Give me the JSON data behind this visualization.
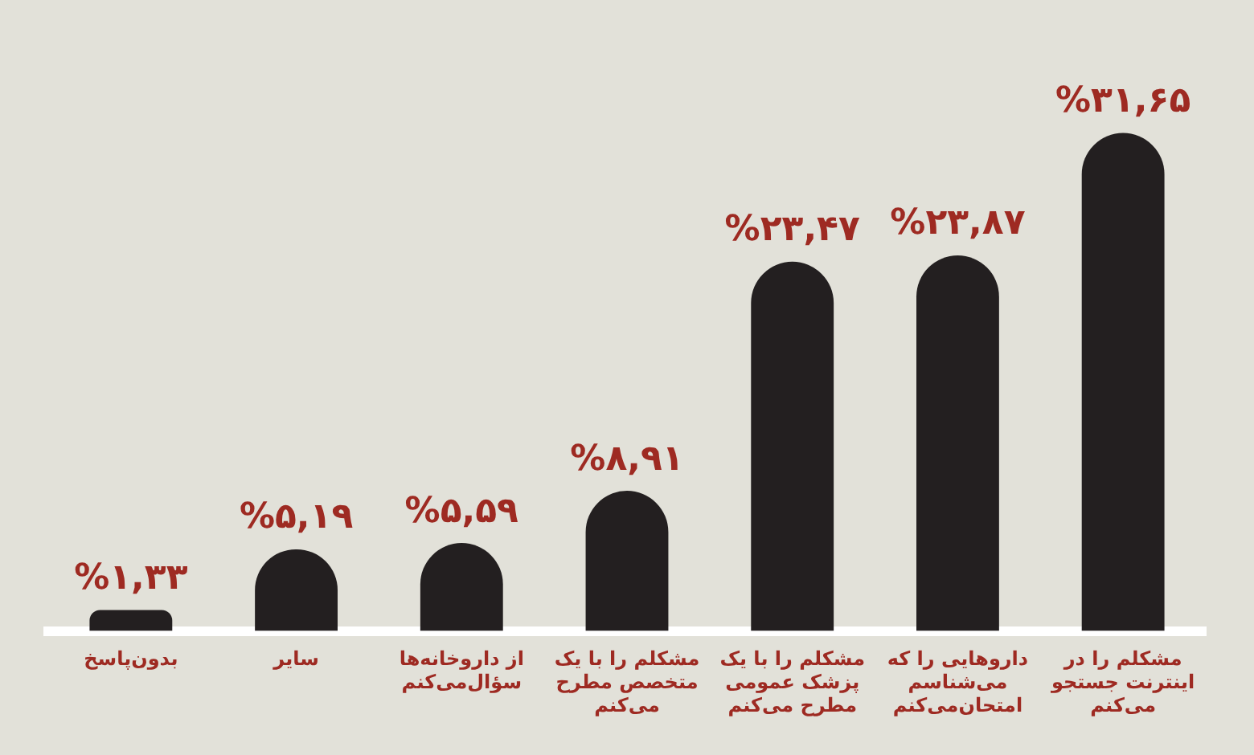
{
  "chart_data": {
    "type": "bar",
    "categories": [
      "بدون‌پاسخ",
      "سایر",
      "از داروخانه‌ها\nسؤال‌می‌کنم",
      "مشکلم را با یک\nمتخصص مطرح\nمی‌کنم",
      "مشکلم را با یک\nپزشک عمومی\nمطرح می‌کنم",
      "داروهایی را که\nمی‌شناسم\nامتحان‌می‌کنم",
      "مشکلم را در\nاینترنت جستجو\nمی‌کنم"
    ],
    "values": [
      1.33,
      5.19,
      5.59,
      8.91,
      23.47,
      23.87,
      31.65
    ],
    "value_labels": [
      "%۱,۳۳",
      "%۵,۱۹",
      "%۵,۵۹",
      "%۸,۹۱",
      "%۲۳,۴۷",
      "%۲۳,۸۷",
      "%۳۱,۶۵"
    ],
    "color": "#231f20",
    "tick_labels": "x"
  }
}
